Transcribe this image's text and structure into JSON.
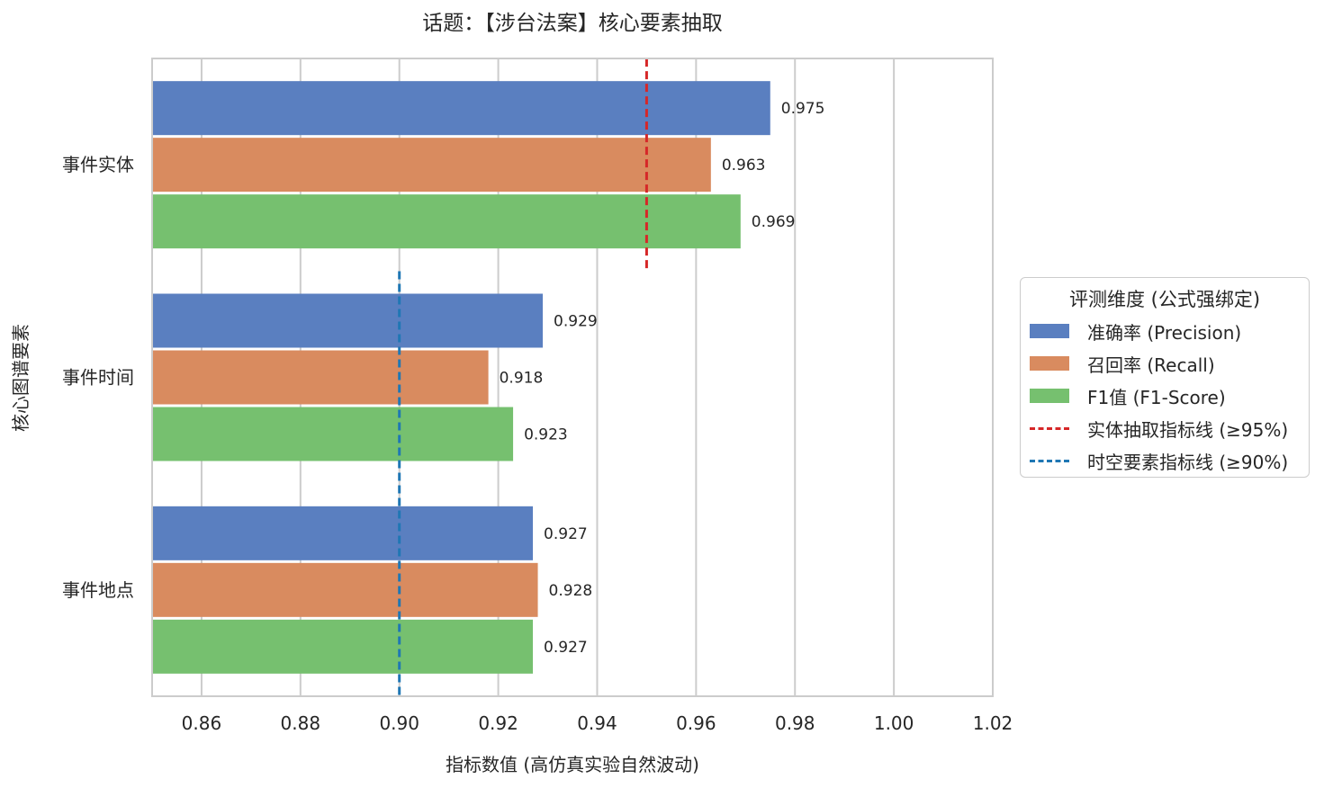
{
  "chart_data": {
    "type": "bar",
    "orientation": "horizontal",
    "title": "话题：【涉台法案】核心要素抽取",
    "xlabel": "指标数值 (高仿真实验自然波动)",
    "ylabel": "核心图谱要素",
    "categories": [
      "事件实体",
      "事件时间",
      "事件地点"
    ],
    "series": [
      {
        "name": "准确率 (Precision)",
        "color": "#5a7fc0",
        "values": [
          0.975,
          0.929,
          0.927
        ]
      },
      {
        "name": "召回率 (Recall)",
        "color": "#d98b5f",
        "values": [
          0.963,
          0.918,
          0.928
        ]
      },
      {
        "name": "F1值 (F1-Score)",
        "color": "#76c06f",
        "values": [
          0.969,
          0.923,
          0.927
        ]
      }
    ],
    "data_labels": [
      [
        "0.975",
        "0.963",
        "0.969"
      ],
      [
        "0.929",
        "0.918",
        "0.923"
      ],
      [
        "0.927",
        "0.928",
        "0.927"
      ]
    ],
    "reference_lines": [
      {
        "name": "实体抽取指标线 (≥95%)",
        "value": 0.95,
        "color": "#d62728",
        "applies_to": [
          "事件实体"
        ]
      },
      {
        "name": "时空要素指标线 (≥90%)",
        "value": 0.9,
        "color": "#1f77b4",
        "applies_to": [
          "事件时间",
          "事件地点"
        ]
      }
    ],
    "xlim": [
      0.85,
      1.02
    ],
    "xticks": [
      0.86,
      0.88,
      0.9,
      0.92,
      0.94,
      0.96,
      0.98,
      1.0,
      1.02
    ],
    "xtick_labels": [
      "0.86",
      "0.88",
      "0.90",
      "0.92",
      "0.94",
      "0.96",
      "0.98",
      "1.00",
      "1.02"
    ],
    "grid": "vertical",
    "legend": {
      "title": "评测维度 (公式强绑定)",
      "position": "outside-right"
    }
  }
}
